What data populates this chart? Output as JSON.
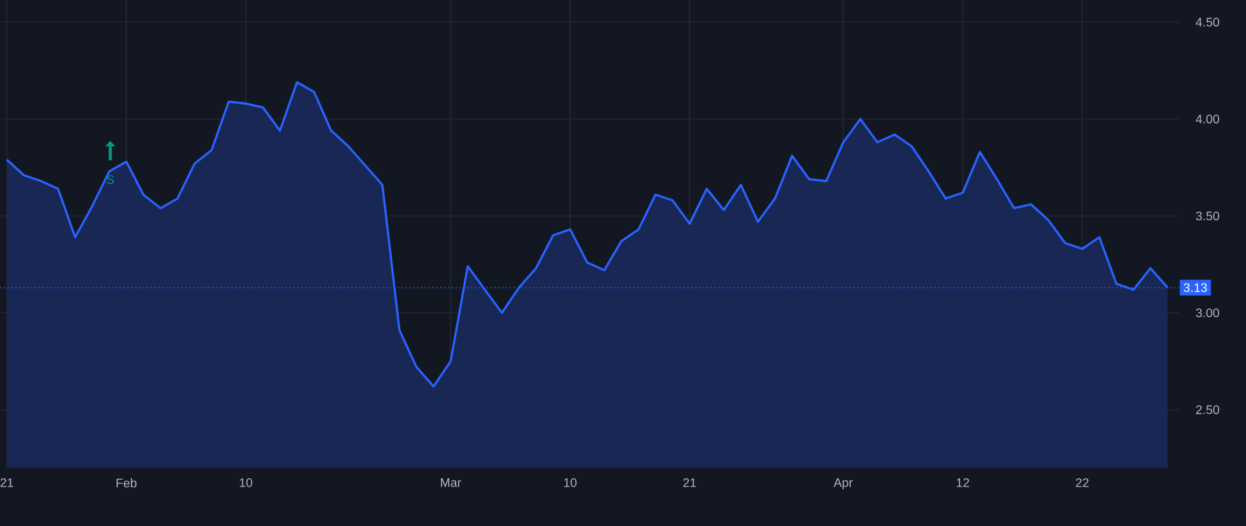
{
  "chart_data": {
    "type": "area",
    "categories": [
      "21",
      null,
      null,
      null,
      null,
      null,
      null,
      "Feb",
      null,
      null,
      null,
      null,
      null,
      null,
      "10",
      null,
      null,
      null,
      null,
      null,
      null,
      null,
      null,
      null,
      null,
      null,
      "Mar",
      null,
      null,
      null,
      null,
      null,
      null,
      "10",
      null,
      null,
      null,
      null,
      null,
      null,
      "21",
      null,
      null,
      null,
      null,
      null,
      null,
      null,
      null,
      "Apr",
      null,
      null,
      null,
      null,
      null,
      null,
      "12",
      null,
      null,
      null,
      null,
      null,
      null,
      "22",
      null,
      null,
      null,
      null,
      null
    ],
    "series": [
      {
        "color": "#2962ff",
        "values": [
          3.79,
          3.71,
          3.68,
          3.64,
          3.39,
          3.55,
          3.73,
          3.78,
          3.61,
          3.54,
          3.59,
          3.77,
          3.84,
          4.09,
          4.08,
          4.06,
          3.94,
          4.19,
          4.14,
          3.94,
          3.86,
          3.76,
          3.66,
          2.91,
          2.72,
          2.62,
          2.75,
          3.24,
          3.12,
          3.0,
          3.13,
          3.23,
          3.4,
          3.43,
          3.26,
          3.22,
          3.37,
          3.43,
          3.61,
          3.58,
          3.46,
          3.64,
          3.53,
          3.66,
          3.47,
          3.59,
          3.81,
          3.69,
          3.68,
          3.88,
          4.0,
          3.88,
          3.92,
          3.86,
          3.73,
          3.59,
          3.62,
          3.83,
          3.69,
          3.54,
          3.56,
          3.48,
          3.36,
          3.33,
          3.39,
          3.15,
          3.12,
          3.23,
          3.13
        ]
      }
    ],
    "ylim": [
      2.2,
      4.7
    ],
    "yticks": [
      {
        "value": 2.5,
        "label": "2.50"
      },
      {
        "value": 3.0,
        "label": "3.00"
      },
      {
        "value": 3.5,
        "label": "3.50"
      },
      {
        "value": 4.0,
        "label": "4.00"
      },
      {
        "value": 4.5,
        "label": "4.50"
      }
    ],
    "grid": true,
    "ref_lines": [
      {
        "axis": "y",
        "value": 3.13,
        "label": "3.13",
        "color": "#2962ff",
        "line_style": "dotted"
      }
    ],
    "annotations": [
      "S"
    ]
  }
}
